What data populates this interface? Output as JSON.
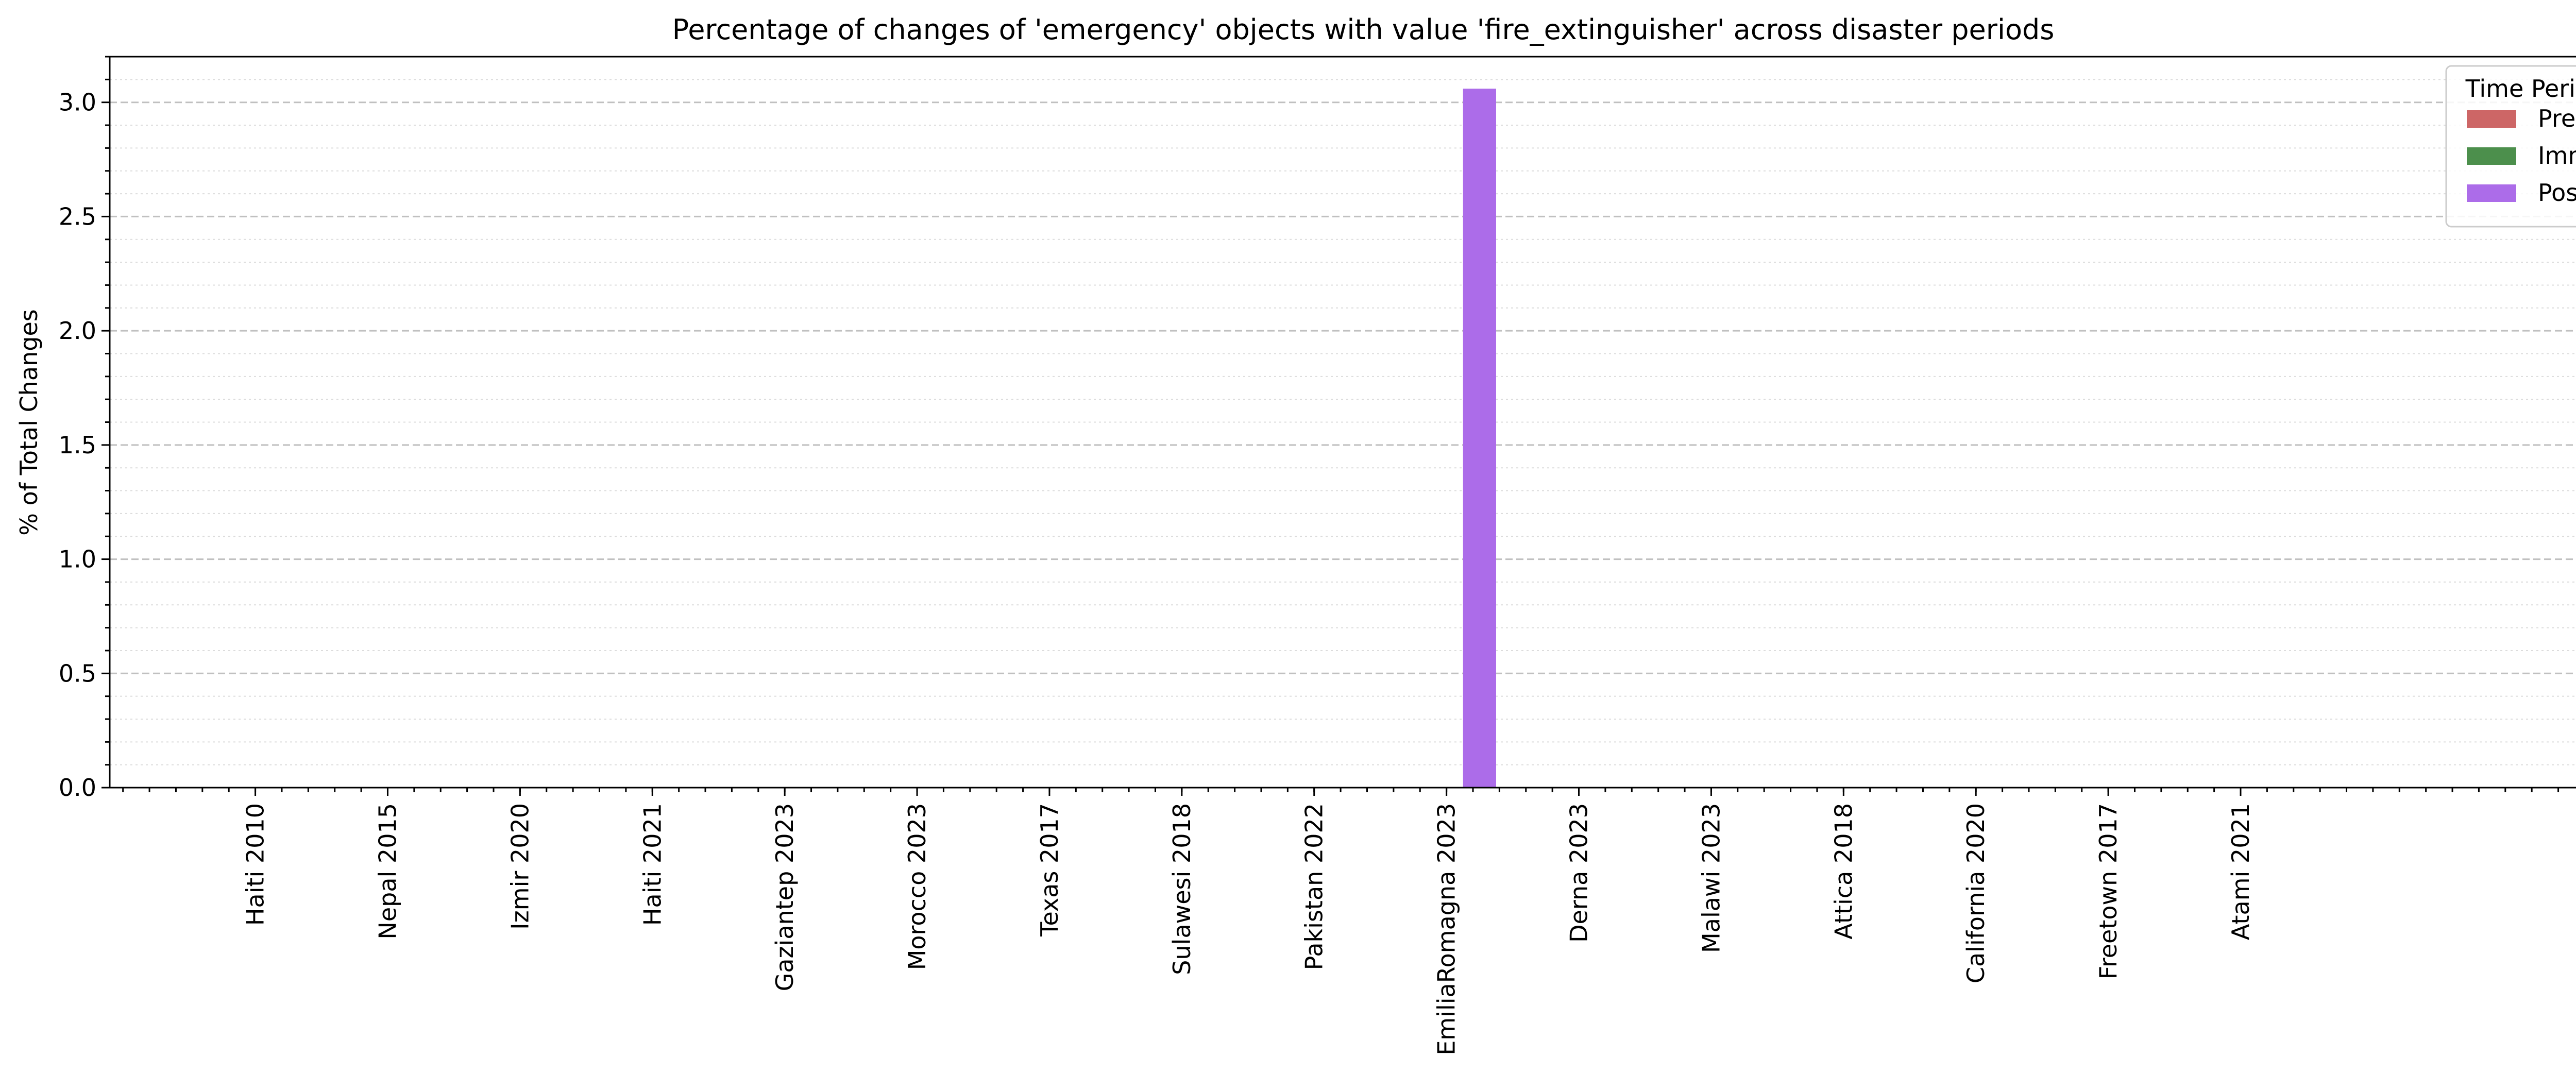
{
  "chart_data": {
    "type": "bar",
    "title": "Percentage of changes of 'emergency' objects with value 'fire_extinguisher' across disaster periods",
    "xlabel": "",
    "ylabel": "% of Total Changes",
    "ylim": [
      0,
      3.2
    ],
    "yticks": [
      "0.0",
      "0.5",
      "1.0",
      "1.5",
      "2.0",
      "2.5",
      "3.0"
    ],
    "y_major_step": 0.5,
    "y_minor_step": 0.1,
    "grid": true,
    "categories": [
      "Haiti 2010",
      "Nepal 2015",
      "Izmir 2020",
      "Haiti 2021",
      "Gaziantep 2023",
      "Morocco 2023",
      "Texas 2017",
      "Sulawesi 2018",
      "Pakistan 2022",
      "EmiliaRomagna 2023",
      "Derna 2023",
      "Malawi 2023",
      "Attica 2018",
      "California 2020",
      "Freetown 2017",
      "Atami 2021"
    ],
    "series": [
      {
        "name": "Pre",
        "color": "#cd6666",
        "values": [
          0,
          0,
          0,
          0,
          0,
          0,
          0,
          0,
          0,
          0,
          0,
          0,
          0,
          0,
          0,
          0
        ]
      },
      {
        "name": "Imm",
        "color": "#4c8f4c",
        "values": [
          0,
          0,
          0,
          0,
          0,
          0,
          0,
          0,
          0,
          0,
          0,
          0,
          0,
          0,
          0,
          0
        ]
      },
      {
        "name": "Post",
        "color": "#ac6ce9",
        "values": [
          0,
          0,
          0,
          0,
          0,
          0,
          0,
          0,
          0,
          3.06,
          0,
          0,
          0,
          0,
          0,
          0
        ]
      }
    ],
    "legend": {
      "title": "Time Period",
      "placement": "top-right"
    }
  }
}
